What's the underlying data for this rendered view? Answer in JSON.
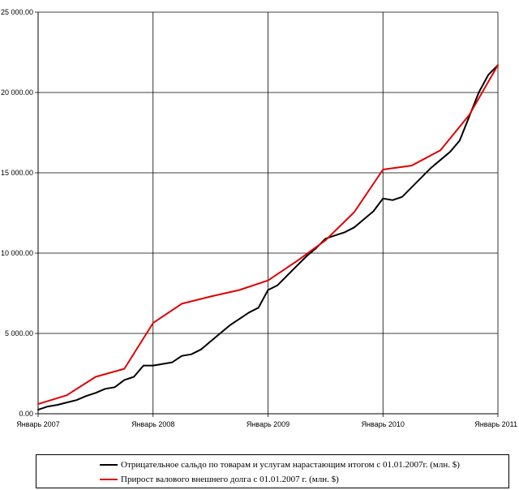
{
  "chart_data": {
    "type": "line",
    "title": "",
    "xlabel": "",
    "ylabel": "",
    "x_tick_labels": [
      "Январь 2007",
      "Январь 2008",
      "Январь 2009",
      "Январь 2010",
      "Январь 2011"
    ],
    "y_tick_labels": [
      "0.00",
      "5 000.00",
      "10 000.00",
      "15 000.00",
      "20 000.00",
      "25 000.00"
    ],
    "ylim": [
      0,
      25000
    ],
    "xlim": [
      0,
      48
    ],
    "grid": true,
    "legend_position": "bottom",
    "series": [
      {
        "name": "Отрицательное сальдо по товарам и услугам нарастающим итогом с 01.01.2007г. (млн. $)",
        "color": "#000000",
        "x": [
          0,
          1,
          2,
          3,
          4,
          5,
          6,
          7,
          8,
          9,
          10,
          11,
          12,
          13,
          14,
          15,
          16,
          17,
          18,
          19,
          20,
          21,
          22,
          23,
          24,
          25,
          26,
          27,
          28,
          29,
          30,
          31,
          32,
          33,
          34,
          35,
          36,
          37,
          38,
          39,
          40,
          41,
          42,
          43,
          44,
          45,
          46,
          47,
          48
        ],
        "y": [
          250,
          450,
          550,
          700,
          850,
          1100,
          1300,
          1550,
          1650,
          2100,
          2300,
          3000,
          3000,
          3100,
          3200,
          3600,
          3700,
          4000,
          4500,
          5000,
          5500,
          5900,
          6300,
          6600,
          7700,
          8000,
          8600,
          9200,
          9800,
          10300,
          10900,
          11100,
          11300,
          11600,
          12100,
          12600,
          13400,
          13300,
          13500,
          14100,
          14700,
          15300,
          15800,
          16300,
          17000,
          18500,
          20000,
          21100,
          21700
        ]
      },
      {
        "name": "Прирост валового внешнего долга с 01.01.2007 г. (млн. $)",
        "color": "#e00000",
        "x": [
          0,
          3,
          6,
          9,
          12,
          15,
          18,
          21,
          24,
          27,
          30,
          33,
          36,
          39,
          42,
          45,
          48
        ],
        "y": [
          600,
          1150,
          2300,
          2800,
          5650,
          6850,
          7300,
          7700,
          8300,
          9500,
          10800,
          12550,
          15200,
          15450,
          16400,
          18600,
          21700
        ]
      }
    ]
  }
}
